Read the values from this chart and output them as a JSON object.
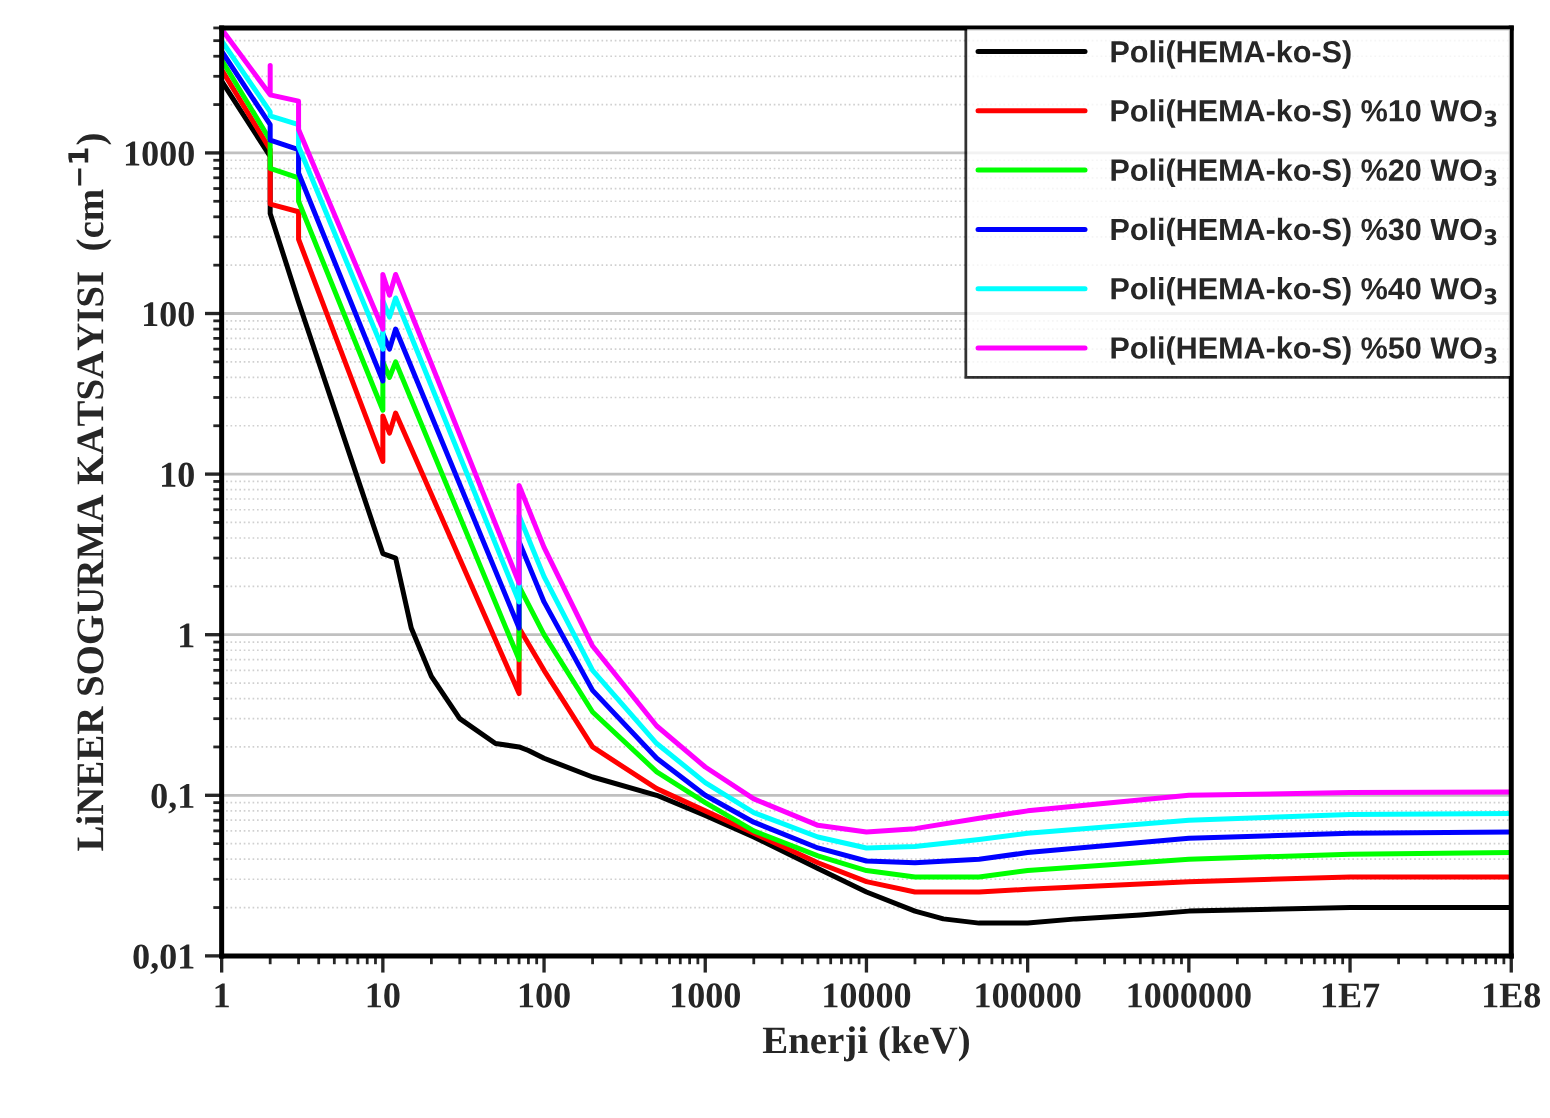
{
  "chart_data": {
    "type": "line",
    "xlabel": "Enerji (keV)",
    "ylabel": "LiNEER SOGURMA KATSAYISI  (cm$^{−1}$)",
    "log": "xy",
    "grid": "y",
    "legend": "top right",
    "marker": "none",
    "line_style": "solid",
    "xlim": [
      1,
      100000000
    ],
    "ylim": [
      0.01,
      6000
    ],
    "xticks": [
      1,
      10,
      100,
      1000,
      10000,
      100000,
      1000000,
      {
        "value": 10000000,
        "label": "1E7"
      },
      {
        "value": 100000000,
        "label": "1E8"
      }
    ],
    "yticks": [
      {
        "value": 0.01,
        "label": "0,01"
      },
      {
        "value": 0.1,
        "label": "0,1"
      },
      1,
      10,
      100,
      1000
    ],
    "series": [
      {
        "name": "Poli(HEMA-ko-S)",
        "color": "#000000",
        "x": [
          1,
          2,
          2,
          3,
          10,
          12,
          15,
          20,
          30,
          50,
          70,
          80,
          100,
          200,
          500,
          1000,
          2000,
          5000,
          10000,
          20000,
          30000,
          50000,
          100000,
          200000,
          500000,
          1000000,
          10000000,
          100000000
        ],
        "values": [
          2800,
          950,
          420,
          118,
          3.2,
          3.0,
          1.1,
          0.55,
          0.3,
          0.21,
          0.2,
          0.19,
          0.17,
          0.13,
          0.1,
          0.075,
          0.055,
          0.035,
          0.025,
          0.019,
          0.017,
          0.016,
          0.016,
          0.017,
          0.018,
          0.019,
          0.02,
          0.02
        ]
      },
      {
        "name": "Poli(HEMA-ko-S) %10 WO$_{3}$",
        "color": "#ff0000",
        "x": [
          1,
          2,
          2,
          3,
          3,
          10,
          10,
          11,
          12,
          70,
          70,
          100,
          200,
          500,
          1000,
          2000,
          5000,
          10000,
          20000,
          50000,
          100000,
          1000000,
          10000000,
          100000000
        ],
        "values": [
          3300,
          1050,
          480,
          430,
          290,
          12,
          23,
          18,
          24,
          0.43,
          1.1,
          0.6,
          0.2,
          0.11,
          0.08,
          0.058,
          0.038,
          0.029,
          0.025,
          0.025,
          0.026,
          0.029,
          0.031,
          0.031
        ]
      },
      {
        "name": "Poli(HEMA-ko-S) %20 WO$_{3}$",
        "color": "#00ff00",
        "x": [
          1,
          2,
          2,
          3,
          3,
          10,
          10,
          11,
          12,
          70,
          70,
          100,
          200,
          500,
          1000,
          2000,
          5000,
          10000,
          20000,
          50000,
          100000,
          1000000,
          10000000,
          100000000
        ],
        "values": [
          3800,
          1200,
          800,
          700,
          500,
          25,
          50,
          40,
          50,
          0.7,
          2.0,
          1.0,
          0.33,
          0.14,
          0.09,
          0.06,
          0.042,
          0.034,
          0.031,
          0.031,
          0.034,
          0.04,
          0.043,
          0.044
        ]
      },
      {
        "name": "Poli(HEMA-ko-S) %30 WO$_{3}$",
        "color": "#0000ff",
        "x": [
          1,
          2,
          2,
          3,
          3,
          10,
          10,
          11,
          12,
          70,
          70,
          100,
          200,
          500,
          1000,
          2000,
          5000,
          10000,
          20000,
          50000,
          100000,
          1000000,
          10000000,
          100000000
        ],
        "values": [
          4300,
          1500,
          1200,
          1050,
          750,
          38,
          75,
          60,
          80,
          1.1,
          3.8,
          1.6,
          0.45,
          0.17,
          0.1,
          0.068,
          0.047,
          0.039,
          0.038,
          0.04,
          0.044,
          0.054,
          0.058,
          0.059
        ]
      },
      {
        "name": "Poli(HEMA-ko-S) %40 WO$_{3}$",
        "color": "#00ffff",
        "x": [
          1,
          2,
          2,
          3,
          3,
          10,
          10,
          11,
          12,
          70,
          70,
          100,
          200,
          500,
          1000,
          2000,
          5000,
          10000,
          20000,
          50000,
          100000,
          1000000,
          10000000,
          100000000
        ],
        "values": [
          5000,
          1800,
          1700,
          1500,
          1100,
          60,
          120,
          95,
          125,
          1.6,
          5.5,
          2.3,
          0.6,
          0.21,
          0.12,
          0.078,
          0.055,
          0.047,
          0.048,
          0.053,
          0.058,
          0.07,
          0.076,
          0.077
        ]
      },
      {
        "name": "Poli(HEMA-ko-S) %50 WO$_{3}$",
        "color": "#ff00ff",
        "x": [
          1,
          2,
          2,
          2,
          3,
          3,
          10,
          10,
          11,
          12,
          70,
          70,
          100,
          200,
          500,
          1000,
          2000,
          5000,
          10000,
          20000,
          50000,
          100000,
          1000000,
          10000000,
          100000000
        ],
        "values": [
          5900,
          2300,
          3500,
          2300,
          2100,
          1400,
          80,
          175,
          130,
          175,
          2.1,
          8.5,
          3.5,
          0.85,
          0.27,
          0.15,
          0.095,
          0.065,
          0.059,
          0.062,
          0.072,
          0.08,
          0.1,
          0.104,
          0.105
        ]
      }
    ]
  }
}
